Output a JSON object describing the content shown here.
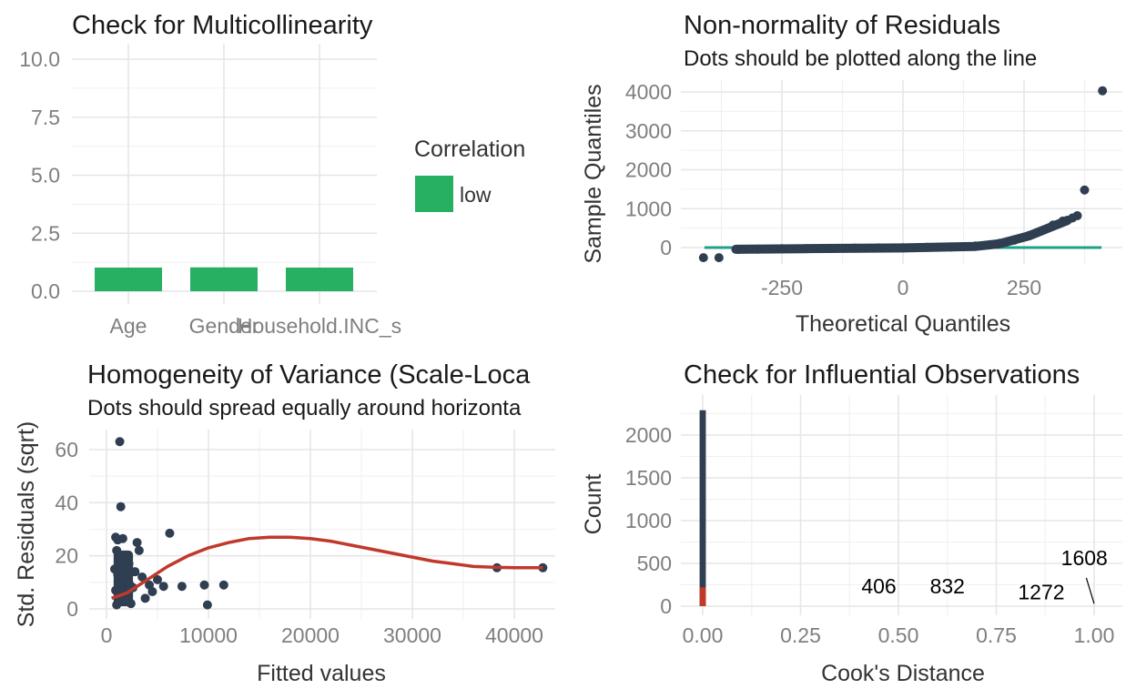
{
  "colors": {
    "dark": "#2f3e50",
    "green": "#27b062",
    "teal": "#1fa187",
    "red": "#c0392b",
    "grid": "#e6e6e6"
  },
  "chart_data": [
    {
      "id": "vif",
      "type": "bar",
      "title": "Check for Multicollinearity",
      "subtitle": "",
      "xlabel": "",
      "ylabel": "",
      "categories": [
        "Age",
        "Gender",
        "Household.INC_s"
      ],
      "values": [
        1.02,
        1.03,
        1.02
      ],
      "ylim": [
        0,
        10
      ],
      "yticks": [
        "0.0",
        "2.5",
        "5.0",
        "7.5",
        "10.0"
      ],
      "legend": {
        "title": "Correlation",
        "items": [
          "low"
        ],
        "placement": "right"
      },
      "grid": true
    },
    {
      "id": "qq",
      "type": "scatter",
      "title": "Non-normality of Residuals",
      "subtitle": "Dots should be plotted along the line",
      "xlabel": "Theoretical Quantiles",
      "ylabel": "Sample Quantiles",
      "xticks": [
        "-250",
        "0",
        "250"
      ],
      "yticks": [
        "0",
        "1000",
        "2000",
        "3000",
        "4000"
      ],
      "xlim": [
        -430,
        430
      ],
      "ylim": [
        -400,
        4200
      ],
      "reference_line": {
        "x": [
          -410,
          410
        ],
        "y": [
          0,
          0
        ]
      },
      "points": [
        [
          -412,
          -260
        ],
        [
          -380,
          -260
        ],
        [
          -340,
          -50
        ],
        [
          -300,
          -40
        ],
        [
          -250,
          -30
        ],
        [
          -200,
          -25
        ],
        [
          -150,
          -20
        ],
        [
          -100,
          -15
        ],
        [
          -50,
          -10
        ],
        [
          0,
          -5
        ],
        [
          50,
          5
        ],
        [
          100,
          15
        ],
        [
          150,
          40
        ],
        [
          180,
          70
        ],
        [
          200,
          110
        ],
        [
          230,
          190
        ],
        [
          260,
          310
        ],
        [
          290,
          450
        ],
        [
          310,
          580
        ],
        [
          330,
          680
        ],
        [
          350,
          760
        ],
        [
          360,
          820
        ],
        [
          375,
          1480
        ],
        [
          412,
          4030
        ]
      ],
      "grid": true
    },
    {
      "id": "scale_location",
      "type": "scatter",
      "title": "Homogeneity of Variance (Scale-Loca",
      "subtitle": "Dots should spread equally around horizonta",
      "xlabel": "Fitted values",
      "ylabel": "Std. Residuals (sqrt)",
      "xticks": [
        "0",
        "10000",
        "20000",
        "30000",
        "40000"
      ],
      "yticks": [
        "0",
        "20",
        "40",
        "60"
      ],
      "xlim": [
        -2000,
        45000
      ],
      "ylim": [
        -2,
        66
      ],
      "points": [
        [
          1300,
          63
        ],
        [
          1400,
          38.5
        ],
        [
          900,
          27
        ],
        [
          1100,
          26
        ],
        [
          1600,
          26.5
        ],
        [
          3000,
          25
        ],
        [
          3200,
          22
        ],
        [
          6200,
          28.5
        ],
        [
          1000,
          22
        ],
        [
          1200,
          19
        ],
        [
          1500,
          17
        ],
        [
          800,
          15
        ],
        [
          1100,
          13
        ],
        [
          1400,
          12
        ],
        [
          1700,
          11
        ],
        [
          2000,
          10
        ],
        [
          2300,
          9
        ],
        [
          2600,
          8
        ],
        [
          900,
          7
        ],
        [
          1200,
          6
        ],
        [
          1500,
          5
        ],
        [
          1800,
          4
        ],
        [
          2100,
          3
        ],
        [
          2400,
          2
        ],
        [
          1000,
          1.5
        ],
        [
          3500,
          12
        ],
        [
          4200,
          9
        ],
        [
          4500,
          6.5
        ],
        [
          5000,
          11
        ],
        [
          5600,
          8.5
        ],
        [
          7400,
          8.5
        ],
        [
          9600,
          9
        ],
        [
          11500,
          9
        ],
        [
          9900,
          1.5
        ],
        [
          3800,
          4
        ],
        [
          2800,
          14
        ],
        [
          1300,
          8
        ],
        [
          1600,
          20
        ],
        [
          2200,
          17
        ],
        [
          38300,
          15.5
        ],
        [
          42800,
          15.5
        ]
      ],
      "smooth": [
        [
          500,
          4
        ],
        [
          2000,
          6
        ],
        [
          4000,
          11
        ],
        [
          6000,
          16
        ],
        [
          8000,
          20
        ],
        [
          10000,
          23
        ],
        [
          12000,
          25
        ],
        [
          14000,
          26.5
        ],
        [
          16000,
          27
        ],
        [
          18000,
          27
        ],
        [
          20000,
          26.5
        ],
        [
          22000,
          25.5
        ],
        [
          24000,
          24
        ],
        [
          26000,
          22.5
        ],
        [
          28000,
          21
        ],
        [
          30000,
          19.5
        ],
        [
          32000,
          18
        ],
        [
          34000,
          17
        ],
        [
          36000,
          16
        ],
        [
          38000,
          15.7
        ],
        [
          40000,
          15.5
        ],
        [
          42800,
          15.5
        ]
      ],
      "grid": true
    },
    {
      "id": "cooks",
      "type": "bar",
      "title": "Check for Influential Observations",
      "subtitle": "",
      "xlabel": "Cook's Distance",
      "ylabel": "Count",
      "xticks": [
        "0.00",
        "0.25",
        "0.50",
        "0.75",
        "1.00"
      ],
      "yticks": [
        "0",
        "500",
        "1000",
        "1500",
        "2000"
      ],
      "xlim": [
        -0.035,
        1.035
      ],
      "ylim": [
        -80,
        2420
      ],
      "bins": [
        {
          "x0": -0.008,
          "x1": 0.008,
          "total": 2290,
          "highlighted": 220
        }
      ],
      "annotations": [
        {
          "label": "406",
          "x": 0.45,
          "y": 150
        },
        {
          "label": "832",
          "x": 0.625,
          "y": 150
        },
        {
          "label": "1272",
          "x": 0.865,
          "y": 80
        },
        {
          "label": "1608",
          "x": 0.975,
          "y": 480
        }
      ],
      "leader_line": {
        "x": [
          0.98,
          1.0
        ],
        "y": [
          330,
          30
        ]
      },
      "grid": true
    }
  ]
}
